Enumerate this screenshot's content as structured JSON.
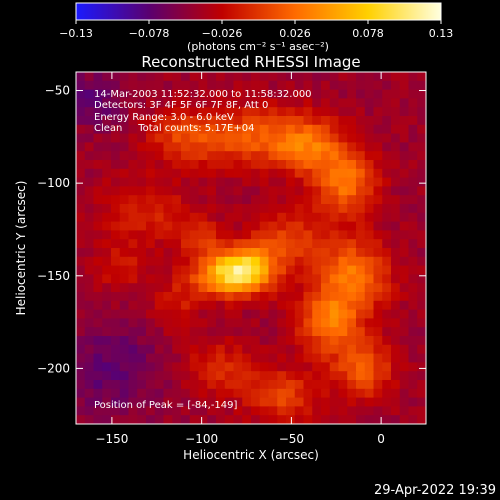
{
  "chart_data": {
    "type": "heatmap",
    "title": "Reconstructed RHESSI Image",
    "xlabel": "Heliocentric X (arcsec)",
    "ylabel": "Heliocentric Y (arcsec)",
    "xlim": [
      -170,
      25
    ],
    "ylim": [
      -230,
      -40
    ],
    "x_ticks": [
      -150,
      -100,
      -50,
      0
    ],
    "y_ticks": [
      -50,
      -100,
      -150,
      -200
    ],
    "x_tick_labels": [
      "−150",
      "−100",
      "−50",
      "0"
    ],
    "y_tick_labels": [
      "−50",
      "−100",
      "−150",
      "−200"
    ],
    "colorbar": {
      "range": [
        -0.13,
        0.13
      ],
      "ticks": [
        -0.13,
        -0.078,
        -0.026,
        0.026,
        0.078,
        0.13
      ],
      "tick_labels": [
        "−0.13",
        "−0.078",
        "−0.026",
        "0.026",
        "0.078",
        "0.13"
      ],
      "unit_label": "(photons cm⁻² s⁻¹ asec⁻²)",
      "colors": [
        "#1a1aff",
        "#5a0070",
        "#c00000",
        "#ff6a00",
        "#ffd000",
        "#ffffe0"
      ]
    },
    "annotations": [
      "14-Mar-2003 11:52:32.000 to 11:58:32.000",
      "Detectors: 3F 4F 5F 6F 7F 8F, Att 0",
      "Energy Range: 3.0 - 6.0 keV",
      "Clean     Total counts: 5.17E+04"
    ],
    "peak_label": "Position of Peak = [-84,-149]",
    "peak": [
      -84,
      -149
    ],
    "sources": [
      {
        "x": -84,
        "y": -149,
        "sx": 14,
        "sy": 8,
        "amp": 0.125
      },
      {
        "x": -72,
        "y": -144,
        "sx": 10,
        "sy": 9,
        "amp": 0.06
      },
      {
        "x": -100,
        "y": -130,
        "sx": 10,
        "sy": 7,
        "amp": 0.035
      },
      {
        "x": -20,
        "y": -100,
        "sx": 12,
        "sy": 12,
        "amp": 0.075
      },
      {
        "x": -40,
        "y": -80,
        "sx": 14,
        "sy": 10,
        "amp": 0.06
      },
      {
        "x": -70,
        "y": -75,
        "sx": 22,
        "sy": 12,
        "amp": 0.055
      },
      {
        "x": -110,
        "y": -75,
        "sx": 15,
        "sy": 10,
        "amp": 0.045
      },
      {
        "x": -130,
        "y": -115,
        "sx": 18,
        "sy": 12,
        "amp": 0.035
      },
      {
        "x": -145,
        "y": -145,
        "sx": 10,
        "sy": 10,
        "amp": 0.03
      },
      {
        "x": -15,
        "y": -150,
        "sx": 14,
        "sy": 14,
        "amp": 0.075
      },
      {
        "x": -30,
        "y": -175,
        "sx": 12,
        "sy": 12,
        "amp": 0.07
      },
      {
        "x": -10,
        "y": -200,
        "sx": 12,
        "sy": 12,
        "amp": 0.06
      },
      {
        "x": -55,
        "y": -215,
        "sx": 14,
        "sy": 10,
        "amp": 0.05
      },
      {
        "x": -90,
        "y": -200,
        "sx": 14,
        "sy": 10,
        "amp": 0.04
      },
      {
        "x": -50,
        "y": -130,
        "sx": 14,
        "sy": 12,
        "amp": 0.045
      },
      {
        "x": -115,
        "y": -165,
        "sx": 10,
        "sy": 10,
        "amp": 0.03
      },
      {
        "x": -160,
        "y": -55,
        "sx": 12,
        "sy": 10,
        "amp": -0.03
      },
      {
        "x": -150,
        "y": -200,
        "sx": 20,
        "sy": 18,
        "amp": -0.03
      }
    ]
  },
  "footer": {
    "timestamp": "29-Apr-2022 19:39"
  }
}
